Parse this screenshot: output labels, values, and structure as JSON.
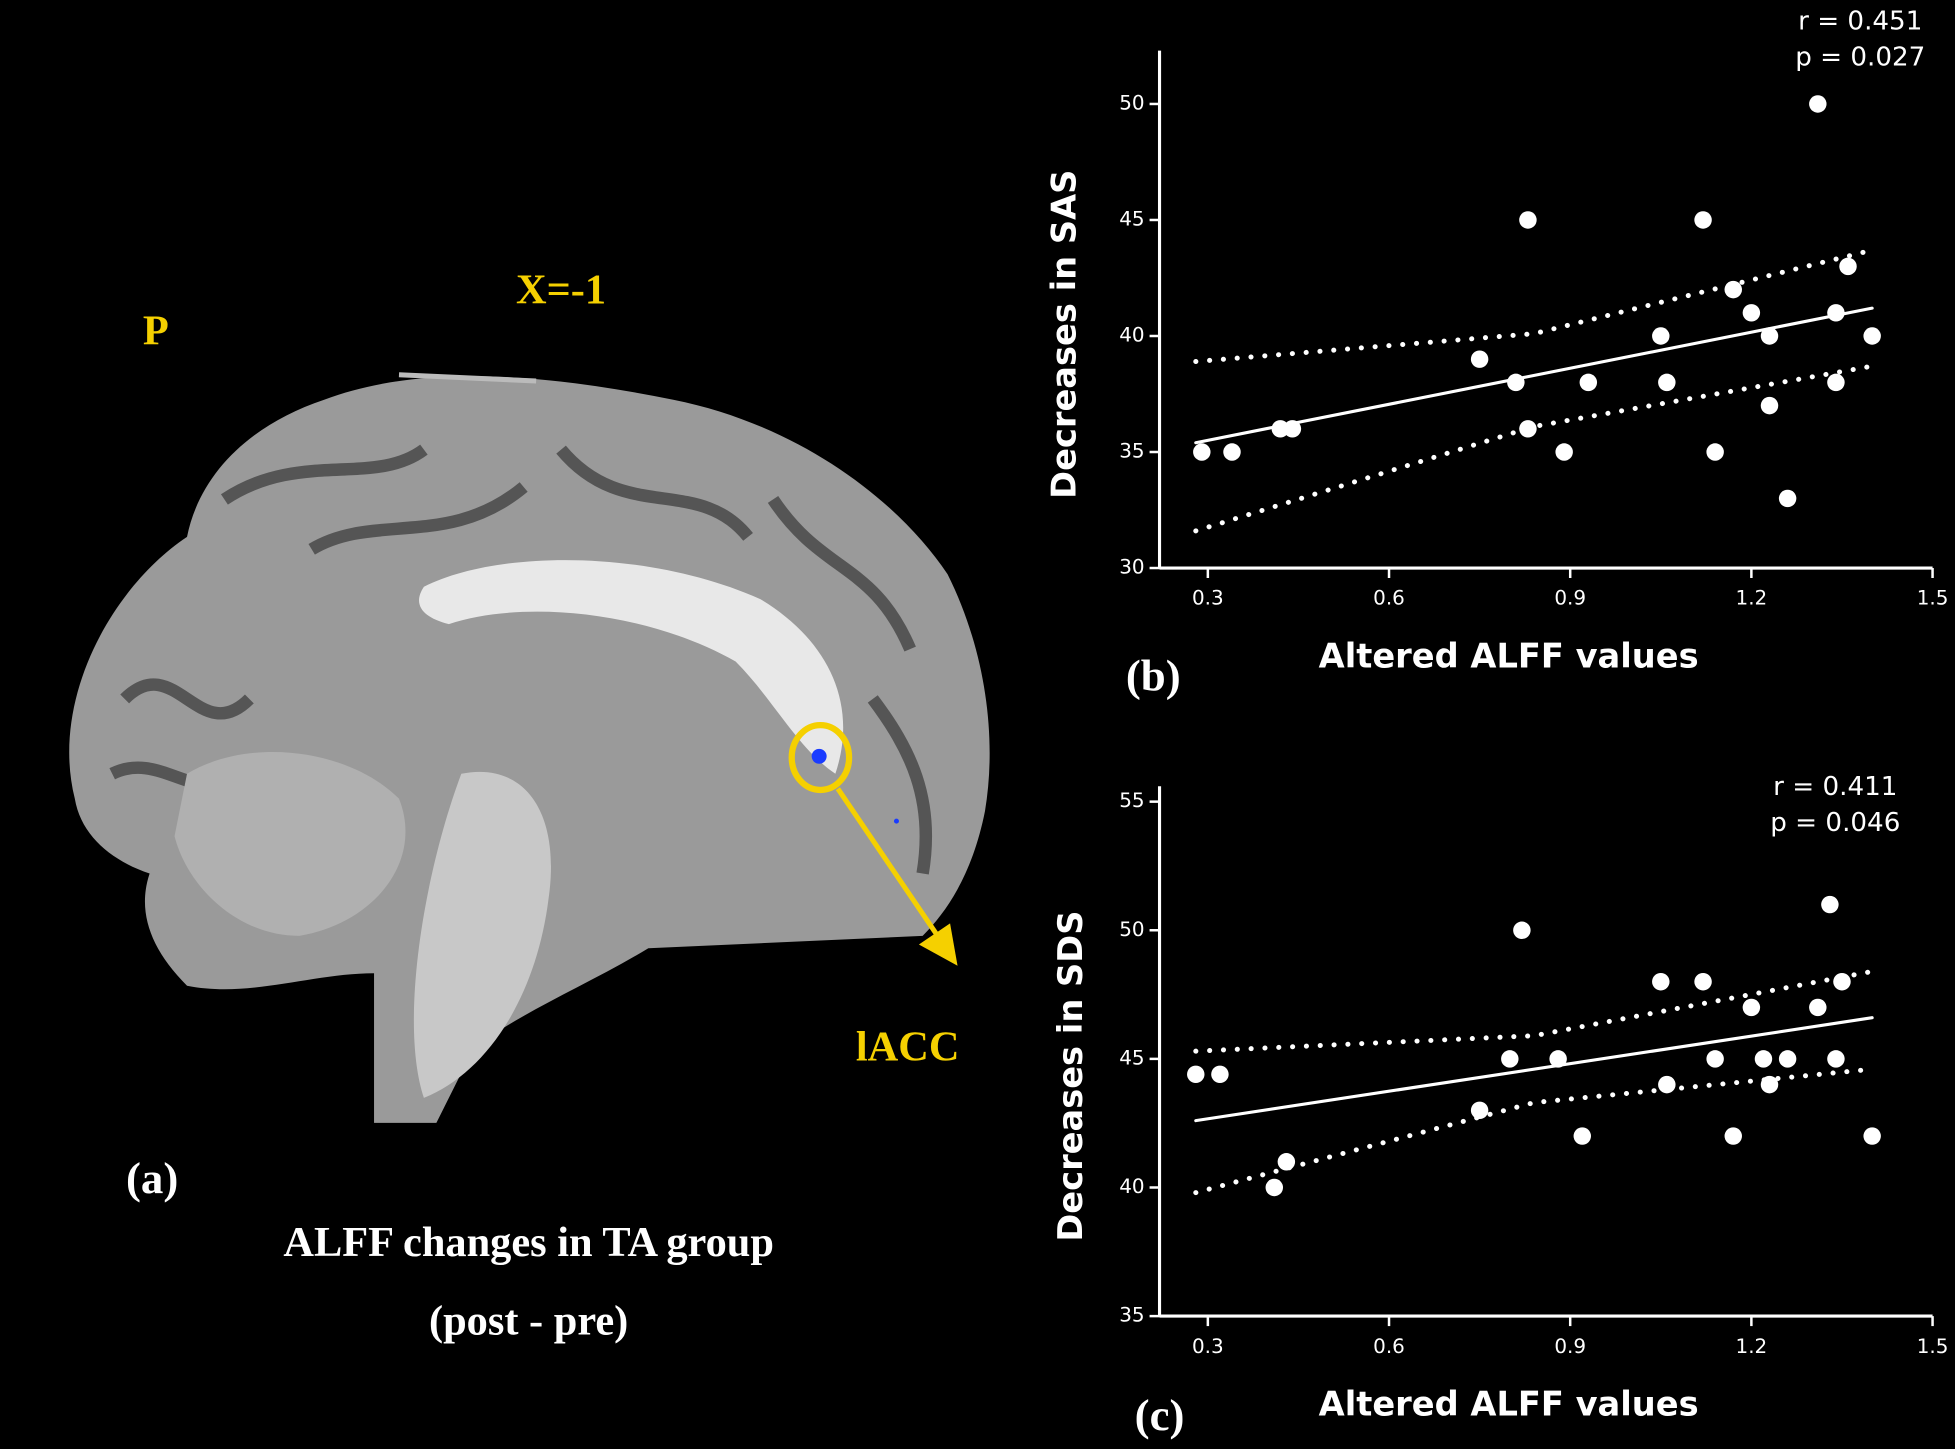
{
  "panel_a": {
    "orientation": "P",
    "slice": "X=-1",
    "region": "lACC",
    "label": "(a)",
    "caption": [
      "ALFF changes in TA group",
      "(post - pre)"
    ]
  },
  "chart_data": [
    {
      "type": "scatter",
      "label": "(b)",
      "xlabel": "Altered ALFF values",
      "ylabel": "Decreases in SAS",
      "annotations": [
        "r = 0.451",
        "p = 0.027"
      ],
      "color": "#ffffff",
      "xlim": [
        0.22,
        1.5
      ],
      "ylim": [
        30,
        52.3
      ],
      "xticks": [
        0.3,
        0.6,
        0.9,
        1.2,
        1.5
      ],
      "yticks": [
        30,
        35,
        40,
        45,
        50
      ],
      "x": [
        0.29,
        0.34,
        0.42,
        0.44,
        0.75,
        0.81,
        0.83,
        0.83,
        0.89,
        0.93,
        1.05,
        1.06,
        1.12,
        1.14,
        1.17,
        1.2,
        1.23,
        1.23,
        1.26,
        1.31,
        1.34,
        1.34,
        1.36,
        1.4
      ],
      "values": [
        35,
        35,
        36,
        36,
        39,
        38,
        45,
        36,
        35,
        38,
        40,
        38,
        45,
        35,
        42,
        41,
        40,
        37,
        33,
        50,
        41,
        38,
        43,
        40
      ],
      "lines": [
        {
          "style": "solid",
          "x": [
            0.28,
            1.4
          ],
          "values": [
            35.4,
            41.2
          ]
        },
        {
          "style": "dotted",
          "x": [
            0.28,
            0.84,
            1.4
          ],
          "values": [
            38.9,
            40.1,
            43.7
          ]
        },
        {
          "style": "dotted",
          "x": [
            0.28,
            0.84,
            1.4
          ],
          "values": [
            31.6,
            36.1,
            38.7
          ]
        }
      ]
    },
    {
      "type": "scatter",
      "label": "(c)",
      "xlabel": "Altered ALFF values",
      "ylabel": "Decreases in SDS",
      "annotations": [
        "r = 0.411",
        "p =  0.046"
      ],
      "color": "#ffffff",
      "xlim": [
        0.22,
        1.5
      ],
      "ylim": [
        35,
        55.6
      ],
      "xticks": [
        0.3,
        0.6,
        0.9,
        1.2,
        1.5
      ],
      "yticks": [
        35,
        40,
        45,
        50,
        55
      ],
      "x": [
        0.28,
        0.32,
        0.41,
        0.43,
        0.75,
        0.8,
        0.82,
        0.88,
        0.92,
        1.05,
        1.06,
        1.12,
        1.14,
        1.17,
        1.2,
        1.22,
        1.23,
        1.26,
        1.31,
        1.33,
        1.34,
        1.35,
        1.4
      ],
      "values": [
        44.4,
        44.4,
        40,
        41,
        43,
        45,
        50,
        45,
        42,
        48,
        44,
        48,
        45,
        42,
        47,
        45,
        44,
        45,
        47,
        51,
        45,
        48,
        42
      ],
      "lines": [
        {
          "style": "solid",
          "x": [
            0.28,
            1.4
          ],
          "values": [
            42.6,
            46.6
          ]
        },
        {
          "style": "dotted",
          "x": [
            0.28,
            0.84,
            1.4
          ],
          "values": [
            45.3,
            45.9,
            48.4
          ]
        },
        {
          "style": "dotted",
          "x": [
            0.28,
            0.84,
            1.4
          ],
          "values": [
            39.8,
            43.3,
            44.6
          ]
        }
      ]
    }
  ]
}
